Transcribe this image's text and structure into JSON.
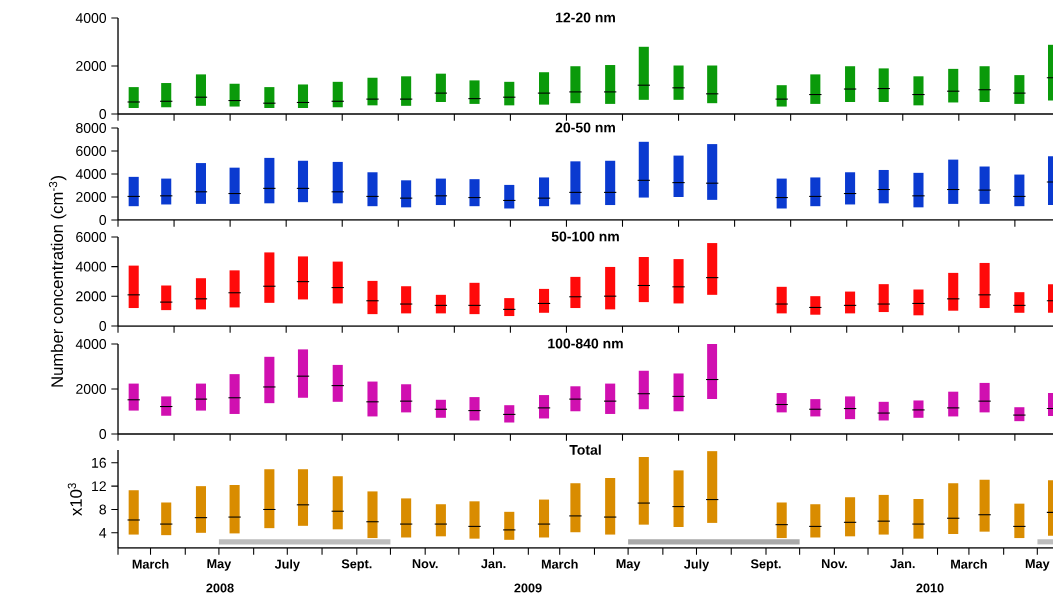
{
  "chart_data": [
    {
      "type": "box",
      "title": "12-20 nm",
      "color": "#0a9a0a",
      "x": [
        "2008-02-15",
        "2008-03-15",
        "2008-04-15",
        "2008-05-15",
        "2008-06-15",
        "2008-07-15",
        "2008-08-15",
        "2008-09-15",
        "2008-10-15",
        "2008-11-15",
        "2008-12-15",
        "2009-01-15",
        "2009-02-15",
        "2009-03-15",
        "2009-04-15",
        "2009-05-15",
        "2009-06-15",
        "2009-07-15",
        "2009-09-15",
        "2009-10-15",
        "2009-11-15",
        "2009-12-15",
        "2010-01-15",
        "2010-02-15",
        "2010-03-15",
        "2010-04-15",
        "2010-05-15"
      ],
      "boxes": [
        {
          "low": 250,
          "q1": 250,
          "median": 500,
          "q3": 1120,
          "high": 1120
        },
        {
          "low": 280,
          "q1": 280,
          "median": 530,
          "q3": 1290,
          "high": 1290
        },
        {
          "low": 340,
          "q1": 340,
          "median": 700,
          "q3": 1650,
          "high": 1650
        },
        {
          "low": 310,
          "q1": 310,
          "median": 560,
          "q3": 1260,
          "high": 1260
        },
        {
          "low": 250,
          "q1": 250,
          "median": 450,
          "q3": 1120,
          "high": 1120
        },
        {
          "low": 250,
          "q1": 250,
          "median": 480,
          "q3": 1230,
          "high": 1230
        },
        {
          "low": 280,
          "q1": 280,
          "median": 530,
          "q3": 1340,
          "high": 1340
        },
        {
          "low": 360,
          "q1": 360,
          "median": 620,
          "q3": 1510,
          "high": 1510
        },
        {
          "low": 340,
          "q1": 340,
          "median": 620,
          "q3": 1570,
          "high": 1570
        },
        {
          "low": 500,
          "q1": 500,
          "median": 870,
          "q3": 1680,
          "high": 1680
        },
        {
          "low": 420,
          "q1": 420,
          "median": 640,
          "q3": 1400,
          "high": 1400
        },
        {
          "low": 360,
          "q1": 360,
          "median": 700,
          "q3": 1340,
          "high": 1340
        },
        {
          "low": 390,
          "q1": 390,
          "median": 870,
          "q3": 1740,
          "high": 1740
        },
        {
          "low": 450,
          "q1": 450,
          "median": 920,
          "q3": 1990,
          "high": 1990
        },
        {
          "low": 420,
          "q1": 420,
          "median": 920,
          "q3": 2040,
          "high": 2040
        },
        {
          "low": 590,
          "q1": 590,
          "median": 1200,
          "q3": 2800,
          "high": 2800
        },
        {
          "low": 590,
          "q1": 590,
          "median": 1090,
          "q3": 2020,
          "high": 2020
        },
        {
          "low": 450,
          "q1": 450,
          "median": 840,
          "q3": 2020,
          "high": 2020
        },
        {
          "low": 310,
          "q1": 310,
          "median": 620,
          "q3": 1200,
          "high": 1200
        },
        {
          "low": 420,
          "q1": 420,
          "median": 810,
          "q3": 1650,
          "high": 1650
        },
        {
          "low": 500,
          "q1": 500,
          "median": 1040,
          "q3": 1990,
          "high": 1990
        },
        {
          "low": 500,
          "q1": 500,
          "median": 1060,
          "q3": 1900,
          "high": 1900
        },
        {
          "low": 360,
          "q1": 360,
          "median": 810,
          "q3": 1570,
          "high": 1570
        },
        {
          "low": 480,
          "q1": 480,
          "median": 950,
          "q3": 1880,
          "high": 1880
        },
        {
          "low": 500,
          "q1": 500,
          "median": 1010,
          "q3": 1990,
          "high": 1990
        },
        {
          "low": 420,
          "q1": 420,
          "median": 870,
          "q3": 1620,
          "high": 1620
        },
        {
          "low": 560,
          "q1": 560,
          "median": 1510,
          "q3": 2880,
          "high": 2880
        }
      ],
      "xlim": [
        "2008-02-01",
        "2010-05-15"
      ],
      "ylim": [
        0,
        4000
      ],
      "yticks": [
        0,
        2000,
        4000
      ],
      "tick_labels": "y"
    },
    {
      "type": "box",
      "title": "20-50 nm",
      "color": "#0a3ad0",
      "x": [
        "2008-02-15",
        "2008-03-15",
        "2008-04-15",
        "2008-05-15",
        "2008-06-15",
        "2008-07-15",
        "2008-08-15",
        "2008-09-15",
        "2008-10-15",
        "2008-11-15",
        "2008-12-15",
        "2009-01-15",
        "2009-02-15",
        "2009-03-15",
        "2009-04-15",
        "2009-05-15",
        "2009-06-15",
        "2009-07-15",
        "2009-09-15",
        "2009-10-15",
        "2009-11-15",
        "2009-12-15",
        "2010-01-15",
        "2010-02-15",
        "2010-03-15",
        "2010-04-15",
        "2010-05-15"
      ],
      "boxes": [
        {
          "low": 1200,
          "q1": 1200,
          "median": 2050,
          "q3": 3750,
          "high": 3750
        },
        {
          "low": 1350,
          "q1": 1350,
          "median": 2100,
          "q3": 3600,
          "high": 3600
        },
        {
          "low": 1400,
          "q1": 1400,
          "median": 2450,
          "q3": 4950,
          "high": 4950
        },
        {
          "low": 1400,
          "q1": 1400,
          "median": 2300,
          "q3": 4550,
          "high": 4550
        },
        {
          "low": 1450,
          "q1": 1450,
          "median": 2750,
          "q3": 5400,
          "high": 5400
        },
        {
          "low": 1550,
          "q1": 1550,
          "median": 2750,
          "q3": 5150,
          "high": 5150
        },
        {
          "low": 1450,
          "q1": 1450,
          "median": 2450,
          "q3": 5050,
          "high": 5050
        },
        {
          "low": 1200,
          "q1": 1200,
          "median": 2050,
          "q3": 4150,
          "high": 4150
        },
        {
          "low": 1100,
          "q1": 1100,
          "median": 1900,
          "q3": 3450,
          "high": 3450
        },
        {
          "low": 1300,
          "q1": 1300,
          "median": 2100,
          "q3": 3600,
          "high": 3600
        },
        {
          "low": 1200,
          "q1": 1200,
          "median": 1950,
          "q3": 3550,
          "high": 3550
        },
        {
          "low": 1000,
          "q1": 1000,
          "median": 1700,
          "q3": 3050,
          "high": 3050
        },
        {
          "low": 1200,
          "q1": 1200,
          "median": 1900,
          "q3": 3700,
          "high": 3700
        },
        {
          "low": 1350,
          "q1": 1350,
          "median": 2400,
          "q3": 5100,
          "high": 5100
        },
        {
          "low": 1300,
          "q1": 1300,
          "median": 2400,
          "q3": 5150,
          "high": 5150
        },
        {
          "low": 1950,
          "q1": 1950,
          "median": 3450,
          "q3": 6800,
          "high": 6800
        },
        {
          "low": 2000,
          "q1": 2000,
          "median": 3250,
          "q3": 5600,
          "high": 5600
        },
        {
          "low": 1750,
          "q1": 1750,
          "median": 3200,
          "q3": 6600,
          "high": 6600
        },
        {
          "low": 1000,
          "q1": 1000,
          "median": 1950,
          "q3": 3600,
          "high": 3600
        },
        {
          "low": 1200,
          "q1": 1200,
          "median": 2050,
          "q3": 3700,
          "high": 3700
        },
        {
          "low": 1350,
          "q1": 1350,
          "median": 2300,
          "q3": 4150,
          "high": 4150
        },
        {
          "low": 1450,
          "q1": 1450,
          "median": 2650,
          "q3": 4350,
          "high": 4350
        },
        {
          "low": 1100,
          "q1": 1100,
          "median": 2100,
          "q3": 4100,
          "high": 4100
        },
        {
          "low": 1400,
          "q1": 1400,
          "median": 2650,
          "q3": 5250,
          "high": 5250
        },
        {
          "low": 1400,
          "q1": 1400,
          "median": 2600,
          "q3": 4650,
          "high": 4650
        },
        {
          "low": 1200,
          "q1": 1200,
          "median": 2050,
          "q3": 3950,
          "high": 3950
        },
        {
          "low": 1300,
          "q1": 1300,
          "median": 3300,
          "q3": 5550,
          "high": 5550
        }
      ],
      "xlim": [
        "2008-02-01",
        "2010-05-15"
      ],
      "ylim": [
        0,
        8000
      ],
      "yticks": [
        0,
        2000,
        4000,
        6000,
        8000
      ],
      "tick_labels": "y"
    },
    {
      "type": "box",
      "title": "50-100 nm",
      "ylabel": "Number concentration (cm$^{-3}$)",
      "color": "#ff0a0a",
      "x": [
        "2008-02-15",
        "2008-03-15",
        "2008-04-15",
        "2008-05-15",
        "2008-06-15",
        "2008-07-15",
        "2008-08-15",
        "2008-09-15",
        "2008-10-15",
        "2008-11-15",
        "2008-12-15",
        "2009-01-15",
        "2009-02-15",
        "2009-03-15",
        "2009-04-15",
        "2009-05-15",
        "2009-06-15",
        "2009-07-15",
        "2009-09-15",
        "2009-10-15",
        "2009-11-15",
        "2009-12-15",
        "2010-01-15",
        "2010-02-15",
        "2010-03-15",
        "2010-04-15",
        "2010-05-15"
      ],
      "boxes": [
        {
          "low": 1210,
          "q1": 1210,
          "median": 2100,
          "q3": 4070,
          "high": 4070
        },
        {
          "low": 1070,
          "q1": 1070,
          "median": 1610,
          "q3": 2730,
          "high": 2730
        },
        {
          "low": 1120,
          "q1": 1120,
          "median": 1830,
          "q3": 3220,
          "high": 3220
        },
        {
          "low": 1250,
          "q1": 1250,
          "median": 2240,
          "q3": 3750,
          "high": 3750
        },
        {
          "low": 1560,
          "q1": 1560,
          "median": 2680,
          "q3": 4960,
          "high": 4960
        },
        {
          "low": 1790,
          "q1": 1790,
          "median": 2990,
          "q3": 4690,
          "high": 4690
        },
        {
          "low": 1520,
          "q1": 1520,
          "median": 2590,
          "q3": 4340,
          "high": 4340
        },
        {
          "low": 800,
          "q1": 800,
          "median": 1700,
          "q3": 3040,
          "high": 3040
        },
        {
          "low": 850,
          "q1": 850,
          "median": 1480,
          "q3": 2680,
          "high": 2680
        },
        {
          "low": 850,
          "q1": 850,
          "median": 1390,
          "q3": 2100,
          "high": 2100
        },
        {
          "low": 800,
          "q1": 800,
          "median": 1390,
          "q3": 2910,
          "high": 2910
        },
        {
          "low": 670,
          "q1": 670,
          "median": 1120,
          "q3": 1880,
          "high": 1880
        },
        {
          "low": 890,
          "q1": 890,
          "median": 1520,
          "q3": 2500,
          "high": 2500
        },
        {
          "low": 1210,
          "q1": 1210,
          "median": 1970,
          "q3": 3310,
          "high": 3310
        },
        {
          "low": 1120,
          "q1": 1120,
          "median": 2010,
          "q3": 3980,
          "high": 3980
        },
        {
          "low": 1610,
          "q1": 1610,
          "median": 2730,
          "q3": 4650,
          "high": 4650
        },
        {
          "low": 1520,
          "q1": 1520,
          "median": 2640,
          "q3": 4510,
          "high": 4510
        },
        {
          "low": 2100,
          "q1": 2100,
          "median": 3260,
          "q3": 5590,
          "high": 5590
        },
        {
          "low": 850,
          "q1": 850,
          "median": 1480,
          "q3": 2640,
          "high": 2640
        },
        {
          "low": 760,
          "q1": 760,
          "median": 1250,
          "q3": 2010,
          "high": 2010
        },
        {
          "low": 850,
          "q1": 850,
          "median": 1390,
          "q3": 2320,
          "high": 2320
        },
        {
          "low": 940,
          "q1": 940,
          "median": 1480,
          "q3": 2820,
          "high": 2820
        },
        {
          "low": 720,
          "q1": 720,
          "median": 1520,
          "q3": 2460,
          "high": 2460
        },
        {
          "low": 1030,
          "q1": 1030,
          "median": 1830,
          "q3": 3580,
          "high": 3580
        },
        {
          "low": 1210,
          "q1": 1210,
          "median": 2100,
          "q3": 4250,
          "high": 4250
        },
        {
          "low": 890,
          "q1": 890,
          "median": 1390,
          "q3": 2280,
          "high": 2280
        },
        {
          "low": 900,
          "q1": 900,
          "median": 1700,
          "q3": 2820,
          "high": 2820
        }
      ],
      "xlim": [
        "2008-02-01",
        "2010-05-15"
      ],
      "ylim": [
        0,
        6000
      ],
      "yticks": [
        0,
        2000,
        4000,
        6000
      ],
      "tick_labels": "y"
    },
    {
      "type": "box",
      "title": "100-840 nm",
      "color": "#d010b0",
      "x": [
        "2008-02-15",
        "2008-03-15",
        "2008-04-15",
        "2008-05-15",
        "2008-06-15",
        "2008-07-15",
        "2008-08-15",
        "2008-09-15",
        "2008-10-15",
        "2008-11-15",
        "2008-12-15",
        "2009-01-15",
        "2009-02-15",
        "2009-03-15",
        "2009-04-15",
        "2009-05-15",
        "2009-06-15",
        "2009-07-15",
        "2009-09-15",
        "2009-10-15",
        "2009-11-15",
        "2009-12-15",
        "2010-01-15",
        "2010-02-15",
        "2010-03-15",
        "2010-04-15",
        "2010-05-15"
      ],
      "boxes": [
        {
          "low": 1040,
          "q1": 1040,
          "median": 1520,
          "q3": 2240,
          "high": 2240
        },
        {
          "low": 810,
          "q1": 810,
          "median": 1220,
          "q3": 1670,
          "high": 1670
        },
        {
          "low": 1040,
          "q1": 1040,
          "median": 1550,
          "q3": 2240,
          "high": 2240
        },
        {
          "low": 890,
          "q1": 890,
          "median": 1610,
          "q3": 2660,
          "high": 2660
        },
        {
          "low": 1370,
          "q1": 1370,
          "median": 2090,
          "q3": 3430,
          "high": 3430
        },
        {
          "low": 1610,
          "q1": 1610,
          "median": 2570,
          "q3": 3760,
          "high": 3760
        },
        {
          "low": 1430,
          "q1": 1430,
          "median": 2150,
          "q3": 3070,
          "high": 3070
        },
        {
          "low": 780,
          "q1": 780,
          "median": 1430,
          "q3": 2330,
          "high": 2330
        },
        {
          "low": 960,
          "q1": 960,
          "median": 1460,
          "q3": 2210,
          "high": 2210
        },
        {
          "low": 720,
          "q1": 720,
          "median": 1100,
          "q3": 1520,
          "high": 1520
        },
        {
          "low": 600,
          "q1": 600,
          "median": 1040,
          "q3": 1640,
          "high": 1640
        },
        {
          "low": 510,
          "q1": 510,
          "median": 870,
          "q3": 1280,
          "high": 1280
        },
        {
          "low": 690,
          "q1": 690,
          "median": 1160,
          "q3": 1730,
          "high": 1730
        },
        {
          "low": 1010,
          "q1": 1010,
          "median": 1550,
          "q3": 2120,
          "high": 2120
        },
        {
          "low": 890,
          "q1": 890,
          "median": 1460,
          "q3": 2240,
          "high": 2240
        },
        {
          "low": 1100,
          "q1": 1100,
          "median": 1790,
          "q3": 2810,
          "high": 2810
        },
        {
          "low": 1010,
          "q1": 1010,
          "median": 1670,
          "q3": 2690,
          "high": 2690
        },
        {
          "low": 1550,
          "q1": 1550,
          "median": 2420,
          "q3": 4000,
          "high": 4000
        },
        {
          "low": 960,
          "q1": 960,
          "median": 1310,
          "q3": 1820,
          "high": 1820
        },
        {
          "low": 780,
          "q1": 780,
          "median": 1100,
          "q3": 1550,
          "high": 1550
        },
        {
          "low": 660,
          "q1": 660,
          "median": 1130,
          "q3": 1670,
          "high": 1670
        },
        {
          "low": 600,
          "q1": 600,
          "median": 930,
          "q3": 1430,
          "high": 1430
        },
        {
          "low": 720,
          "q1": 720,
          "median": 1070,
          "q3": 1490,
          "high": 1490
        },
        {
          "low": 780,
          "q1": 780,
          "median": 1160,
          "q3": 1880,
          "high": 1880
        },
        {
          "low": 960,
          "q1": 960,
          "median": 1460,
          "q3": 2270,
          "high": 2270
        },
        {
          "low": 570,
          "q1": 570,
          "median": 840,
          "q3": 1190,
          "high": 1190
        },
        {
          "low": 800,
          "q1": 800,
          "median": 1130,
          "q3": 1820,
          "high": 1820
        }
      ],
      "xlim": [
        "2008-02-01",
        "2010-05-15"
      ],
      "ylim": [
        0,
        4000
      ],
      "yticks": [
        0,
        2000,
        4000
      ],
      "tick_labels": "y"
    },
    {
      "type": "box",
      "title": "Total",
      "ylabel": "x10$^{3}$",
      "color": "#d98c00",
      "x": [
        "2008-02-15",
        "2008-03-15",
        "2008-04-15",
        "2008-05-15",
        "2008-06-15",
        "2008-07-15",
        "2008-08-15",
        "2008-09-15",
        "2008-10-15",
        "2008-11-15",
        "2008-12-15",
        "2009-01-15",
        "2009-02-15",
        "2009-03-15",
        "2009-04-15",
        "2009-05-15",
        "2009-06-15",
        "2009-07-15",
        "2009-09-15",
        "2009-10-15",
        "2009-11-15",
        "2009-12-15",
        "2010-01-15",
        "2010-02-15",
        "2010-03-15",
        "2010-04-15",
        "2010-05-15"
      ],
      "boxes": [
        {
          "low": 3.7,
          "q1": 3.7,
          "median": 6.2,
          "q3": 11.3,
          "high": 11.3
        },
        {
          "low": 3.6,
          "q1": 3.6,
          "median": 5.5,
          "q3": 9.2,
          "high": 9.2
        },
        {
          "low": 4.0,
          "q1": 4.0,
          "median": 6.6,
          "q3": 12.0,
          "high": 12.0
        },
        {
          "low": 3.9,
          "q1": 3.9,
          "median": 6.7,
          "q3": 12.2,
          "high": 12.2
        },
        {
          "low": 4.8,
          "q1": 4.8,
          "median": 8.0,
          "q3": 14.9,
          "high": 14.9
        },
        {
          "low": 5.2,
          "q1": 5.2,
          "median": 8.8,
          "q3": 14.9,
          "high": 14.9
        },
        {
          "low": 4.6,
          "q1": 4.6,
          "median": 7.7,
          "q3": 13.7,
          "high": 13.7
        },
        {
          "low": 3.1,
          "q1": 3.1,
          "median": 5.9,
          "q3": 11.1,
          "high": 11.1
        },
        {
          "low": 3.2,
          "q1": 3.2,
          "median": 5.5,
          "q3": 9.9,
          "high": 9.9
        },
        {
          "low": 3.4,
          "q1": 3.4,
          "median": 5.5,
          "q3": 8.9,
          "high": 8.9
        },
        {
          "low": 3.0,
          "q1": 3.0,
          "median": 5.1,
          "q3": 9.4,
          "high": 9.4
        },
        {
          "low": 2.8,
          "q1": 2.8,
          "median": 4.5,
          "q3": 7.6,
          "high": 7.6
        },
        {
          "low": 3.2,
          "q1": 3.2,
          "median": 5.5,
          "q3": 9.7,
          "high": 9.7
        },
        {
          "low": 4.1,
          "q1": 4.1,
          "median": 6.9,
          "q3": 12.5,
          "high": 12.5
        },
        {
          "low": 3.7,
          "q1": 3.7,
          "median": 6.7,
          "q3": 13.4,
          "high": 13.4
        },
        {
          "low": 5.4,
          "q1": 5.4,
          "median": 9.1,
          "q3": 17.0,
          "high": 17.0
        },
        {
          "low": 5.0,
          "q1": 5.0,
          "median": 8.5,
          "q3": 14.7,
          "high": 14.7
        },
        {
          "low": 5.7,
          "q1": 5.7,
          "median": 9.7,
          "q3": 18.0,
          "high": 18.0
        },
        {
          "low": 3.1,
          "q1": 3.1,
          "median": 5.4,
          "q3": 9.2,
          "high": 9.2
        },
        {
          "low": 3.2,
          "q1": 3.2,
          "median": 5.1,
          "q3": 8.9,
          "high": 8.9
        },
        {
          "low": 3.4,
          "q1": 3.4,
          "median": 5.8,
          "q3": 10.1,
          "high": 10.1
        },
        {
          "low": 3.7,
          "q1": 3.7,
          "median": 6.0,
          "q3": 10.5,
          "high": 10.5
        },
        {
          "low": 3.0,
          "q1": 3.0,
          "median": 5.5,
          "q3": 9.8,
          "high": 9.8
        },
        {
          "low": 3.8,
          "q1": 3.8,
          "median": 6.5,
          "q3": 12.5,
          "high": 12.5
        },
        {
          "low": 4.2,
          "q1": 4.2,
          "median": 7.1,
          "q3": 13.1,
          "high": 13.1
        },
        {
          "low": 3.1,
          "q1": 3.1,
          "median": 5.1,
          "q3": 9.0,
          "high": 9.0
        },
        {
          "low": 3.5,
          "q1": 3.5,
          "median": 7.5,
          "q3": 13.0,
          "high": 13.0
        }
      ],
      "xlim": [
        "2008-02-01",
        "2010-05-15"
      ],
      "xticks": [
        {
          "value": "2008-02-01",
          "label": null
        },
        {
          "value": "2008-03-01",
          "label": "March"
        },
        {
          "value": "2008-04-01",
          "label": null
        },
        {
          "value": "2008-05-01",
          "label": "May"
        },
        {
          "value": "2008-06-01",
          "label": null
        },
        {
          "value": "2008-07-01",
          "label": "July"
        },
        {
          "value": "2008-08-01",
          "label": null
        },
        {
          "value": "2008-09-01",
          "label": "Sept."
        },
        {
          "value": "2008-10-01",
          "label": null
        },
        {
          "value": "2008-11-01",
          "label": "Nov."
        },
        {
          "value": "2008-12-01",
          "label": null
        },
        {
          "value": "2009-01-01",
          "label": "Jan."
        },
        {
          "value": "2009-02-01",
          "label": null
        },
        {
          "value": "2009-03-01",
          "label": "March"
        },
        {
          "value": "2009-04-01",
          "label": null
        },
        {
          "value": "2009-05-01",
          "label": "May"
        },
        {
          "value": "2009-06-01",
          "label": null
        },
        {
          "value": "2009-07-01",
          "label": "July"
        },
        {
          "value": "2009-08-01",
          "label": null
        },
        {
          "value": "2009-09-01",
          "label": "Sept."
        },
        {
          "value": "2009-10-01",
          "label": null
        },
        {
          "value": "2009-11-01",
          "label": "Nov."
        },
        {
          "value": "2009-12-01",
          "label": null
        },
        {
          "value": "2010-01-01",
          "label": "Jan."
        },
        {
          "value": "2010-02-01",
          "label": null
        },
        {
          "value": "2010-03-01",
          "label": "March"
        },
        {
          "value": "2010-04-01",
          "label": null
        },
        {
          "value": "2010-05-01",
          "label": "May"
        }
      ],
      "ylim": [
        1.4,
        18.2
      ],
      "yticks": [
        4,
        8,
        12,
        16
      ],
      "bands": [
        {
          "axis": "x",
          "from": "2008-05-01",
          "to": "2008-10-01",
          "color": "#bdbdbd"
        },
        {
          "axis": "x",
          "from": "2009-05-01",
          "to": "2009-10-01",
          "color": "#a9a9a9"
        },
        {
          "axis": "x",
          "from": "2010-05-01",
          "to": "2010-05-15",
          "color": "#bdbdbd"
        }
      ],
      "annotations": [
        "2008",
        "2009",
        "2010"
      ]
    }
  ]
}
